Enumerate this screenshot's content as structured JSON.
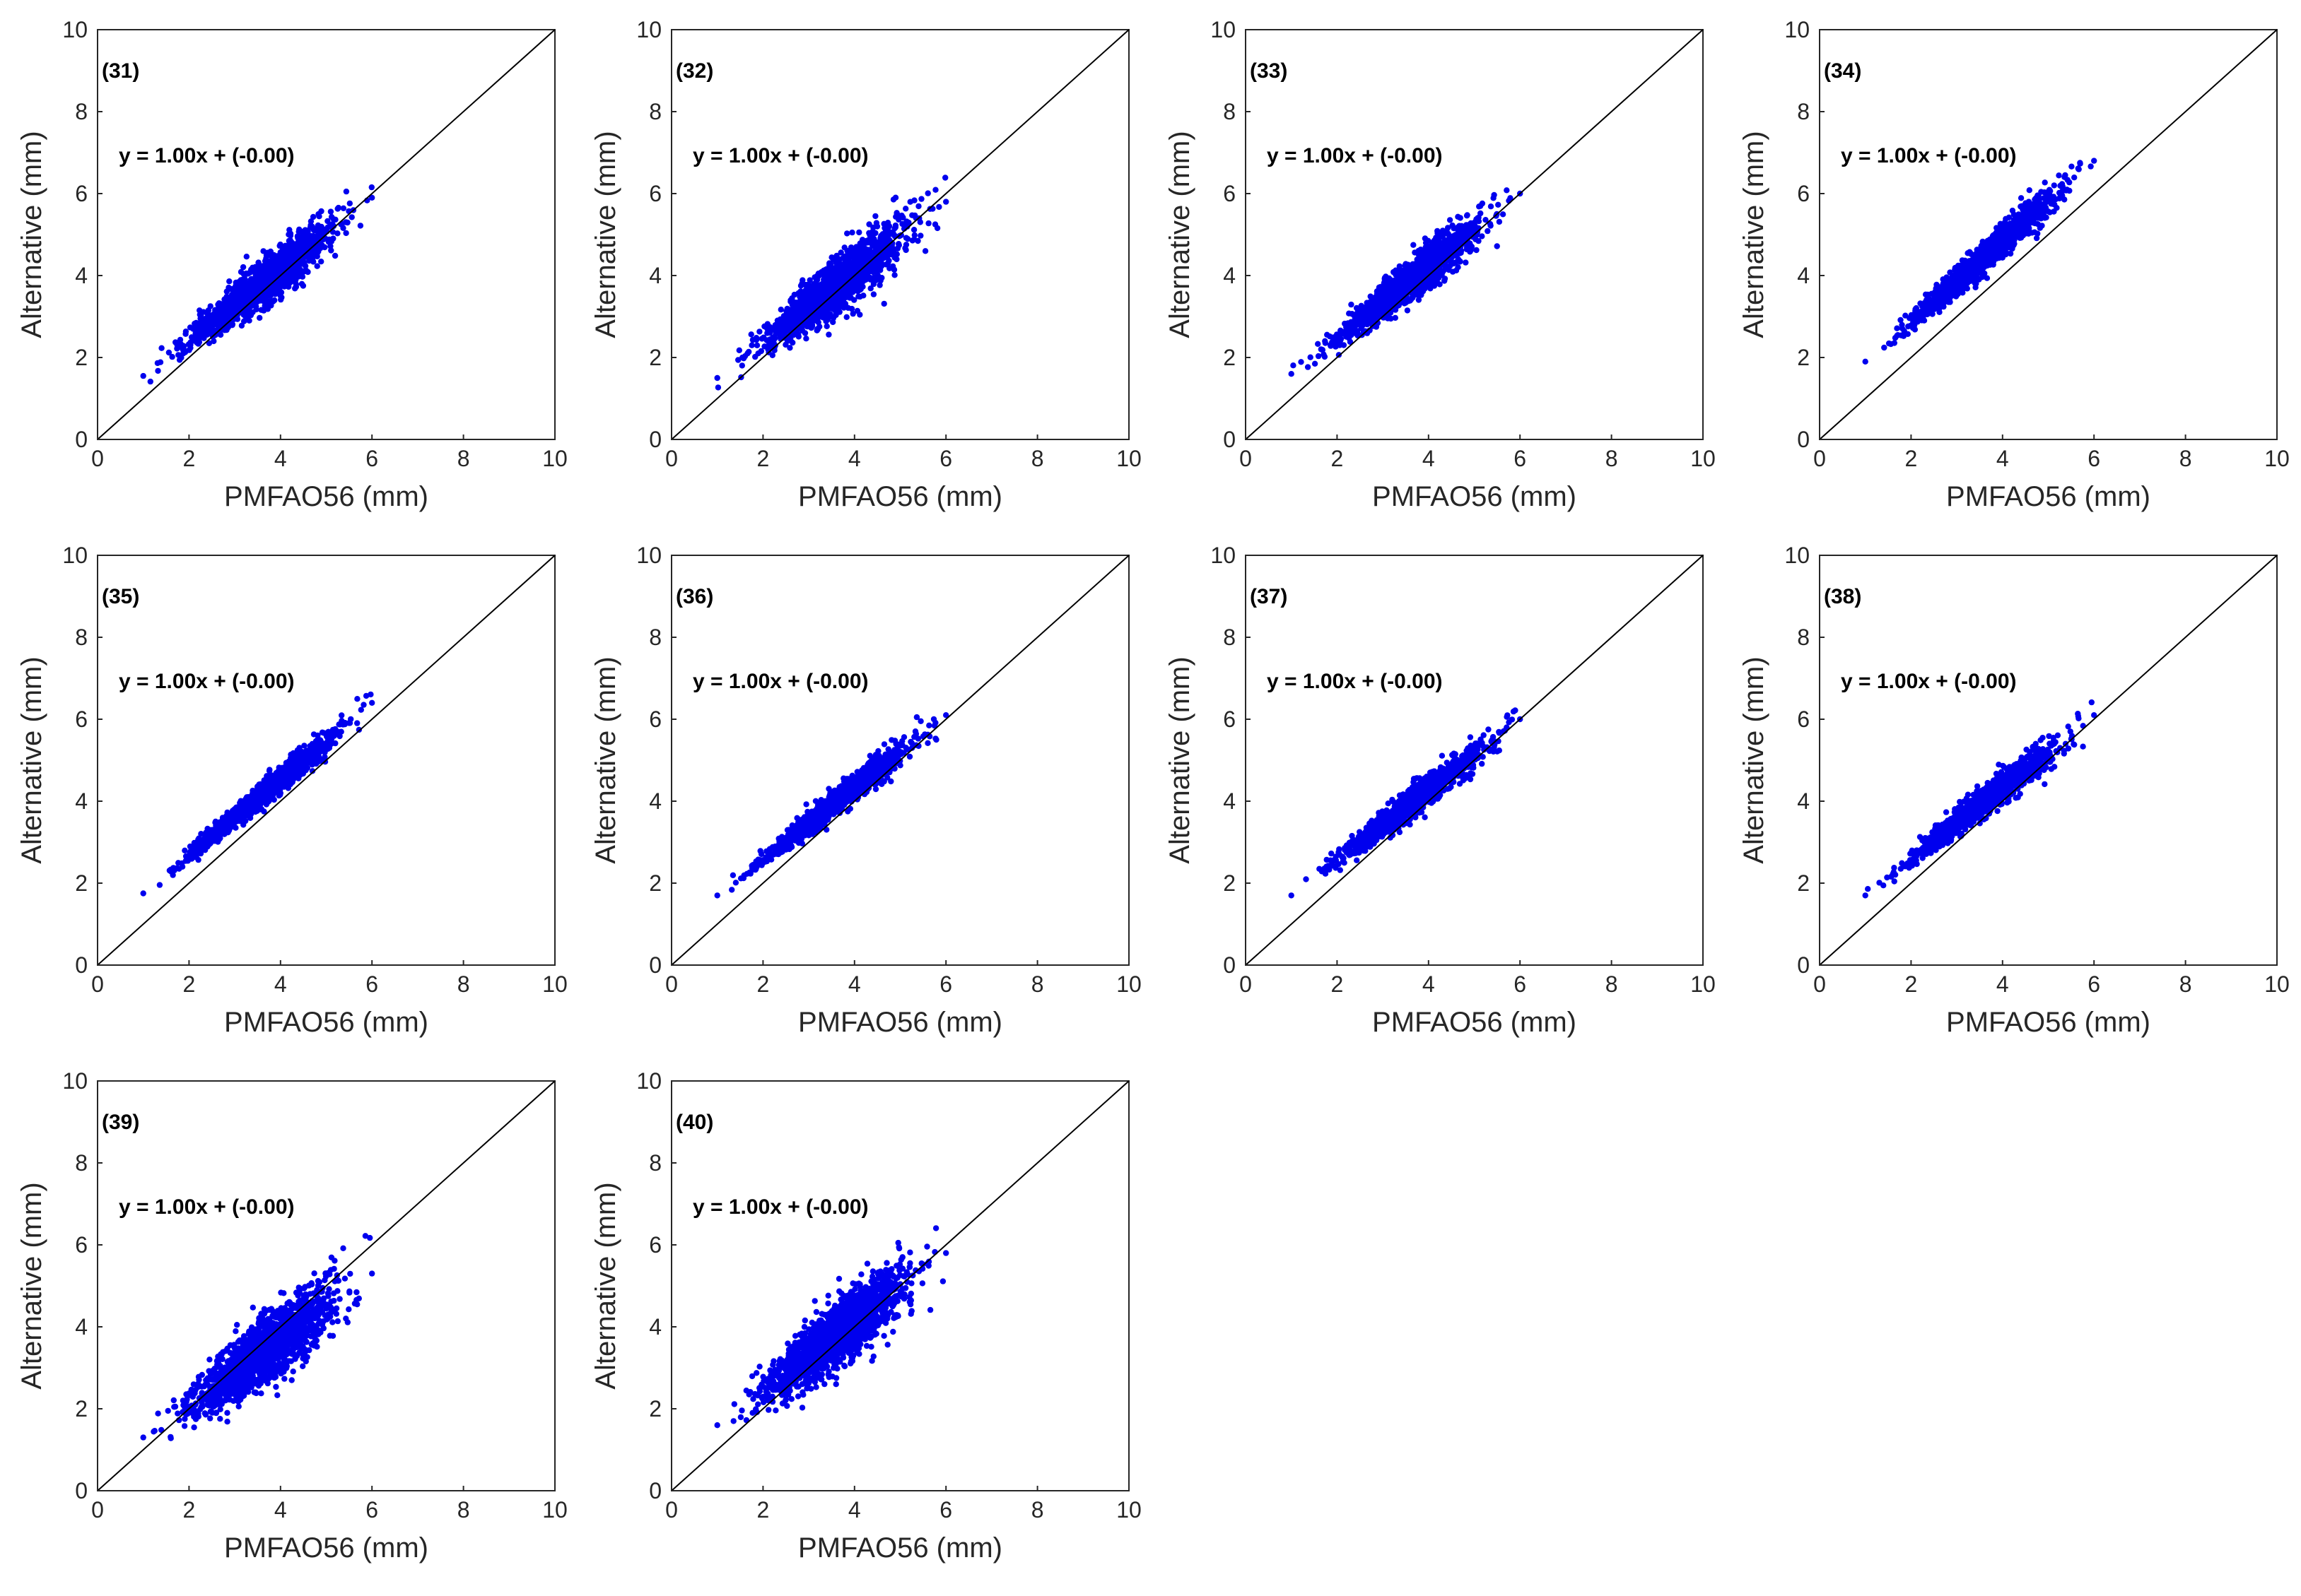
{
  "figure": {
    "description_title": "Scatter plots of Alternative vs PMFAO56, panels 31 to 40",
    "colors": {
      "points": "#0000ee",
      "line": "#000000",
      "axis": "#262626",
      "background": "#ffffff"
    },
    "axis_ticks": [
      "0",
      "2",
      "4",
      "6",
      "8",
      "10"
    ]
  },
  "chart_data": [
    {
      "type": "scatter",
      "panel": "(31)",
      "equation": "y = 1.00x + (-0.00)",
      "xlabel": "PMFAO56 (mm)",
      "ylabel": "Alternative (mm)",
      "xlim": [
        0,
        10
      ],
      "ylim": [
        0,
        10
      ],
      "xticks": [
        0,
        2,
        4,
        6,
        8,
        10
      ],
      "yticks": [
        0,
        2,
        4,
        6,
        8,
        10
      ],
      "reference_line": {
        "slope": 1,
        "intercept": 0
      },
      "point_cloud": {
        "x_min": 1.0,
        "x_max": 6.0,
        "y_at_xmin": 1.55,
        "y_at_xmax": 5.9,
        "slope": 1.0,
        "spread": 0.28,
        "n": 1400
      }
    },
    {
      "type": "scatter",
      "panel": "(32)",
      "equation": "y = 1.00x + (-0.00)",
      "xlabel": "PMFAO56 (mm)",
      "ylabel": "Alternative (mm)",
      "xlim": [
        0,
        10
      ],
      "ylim": [
        0,
        10
      ],
      "xticks": [
        0,
        2,
        4,
        6,
        8,
        10
      ],
      "yticks": [
        0,
        2,
        4,
        6,
        8,
        10
      ],
      "reference_line": {
        "slope": 1,
        "intercept": 0
      },
      "point_cloud": {
        "x_min": 1.0,
        "x_max": 6.0,
        "y_at_xmin": 1.5,
        "y_at_xmax": 5.8,
        "slope": 1.0,
        "spread": 0.32,
        "n": 1500
      }
    },
    {
      "type": "scatter",
      "panel": "(33)",
      "equation": "y = 1.00x + (-0.00)",
      "xlabel": "PMFAO56 (mm)",
      "ylabel": "Alternative (mm)",
      "xlim": [
        0,
        10
      ],
      "ylim": [
        0,
        10
      ],
      "xticks": [
        0,
        2,
        4,
        6,
        8,
        10
      ],
      "yticks": [
        0,
        2,
        4,
        6,
        8,
        10
      ],
      "reference_line": {
        "slope": 1,
        "intercept": 0
      },
      "point_cloud": {
        "x_min": 1.0,
        "x_max": 6.0,
        "y_at_xmin": 1.6,
        "y_at_xmax": 6.0,
        "slope": 1.0,
        "spread": 0.25,
        "n": 1400
      }
    },
    {
      "type": "scatter",
      "panel": "(34)",
      "equation": "y = 1.00x + (-0.00)",
      "xlabel": "PMFAO56 (mm)",
      "ylabel": "Alternative (mm)",
      "xlim": [
        0,
        10
      ],
      "ylim": [
        0,
        10
      ],
      "xticks": [
        0,
        2,
        4,
        6,
        8,
        10
      ],
      "yticks": [
        0,
        2,
        4,
        6,
        8,
        10
      ],
      "reference_line": {
        "slope": 1,
        "intercept": 0
      },
      "point_cloud": {
        "x_min": 1.0,
        "x_max": 6.0,
        "y_at_xmin": 1.9,
        "y_at_xmax": 6.8,
        "slope": 1.0,
        "spread": 0.18,
        "n": 1400
      }
    },
    {
      "type": "scatter",
      "panel": "(35)",
      "equation": "y = 1.00x + (-0.00)",
      "xlabel": "PMFAO56 (mm)",
      "ylabel": "Alternative (mm)",
      "xlim": [
        0,
        10
      ],
      "ylim": [
        0,
        10
      ],
      "xticks": [
        0,
        2,
        4,
        6,
        8,
        10
      ],
      "yticks": [
        0,
        2,
        4,
        6,
        8,
        10
      ],
      "reference_line": {
        "slope": 1,
        "intercept": 0
      },
      "point_cloud": {
        "x_min": 1.0,
        "x_max": 6.0,
        "y_at_xmin": 1.75,
        "y_at_xmax": 6.4,
        "slope": 1.0,
        "spread": 0.15,
        "n": 1300
      }
    },
    {
      "type": "scatter",
      "panel": "(36)",
      "equation": "y = 1.00x + (-0.00)",
      "xlabel": "PMFAO56 (mm)",
      "ylabel": "Alternative (mm)",
      "xlim": [
        0,
        10
      ],
      "ylim": [
        0,
        10
      ],
      "xticks": [
        0,
        2,
        4,
        6,
        8,
        10
      ],
      "yticks": [
        0,
        2,
        4,
        6,
        8,
        10
      ],
      "reference_line": {
        "slope": 1,
        "intercept": 0
      },
      "point_cloud": {
        "x_min": 1.0,
        "x_max": 6.0,
        "y_at_xmin": 1.7,
        "y_at_xmax": 6.1,
        "slope": 1.0,
        "spread": 0.16,
        "n": 1300
      }
    },
    {
      "type": "scatter",
      "panel": "(37)",
      "equation": "y = 1.00x + (-0.00)",
      "xlabel": "PMFAO56 (mm)",
      "ylabel": "Alternative (mm)",
      "xlim": [
        0,
        10
      ],
      "ylim": [
        0,
        10
      ],
      "xticks": [
        0,
        2,
        4,
        6,
        8,
        10
      ],
      "yticks": [
        0,
        2,
        4,
        6,
        8,
        10
      ],
      "reference_line": {
        "slope": 1,
        "intercept": 0
      },
      "point_cloud": {
        "x_min": 1.0,
        "x_max": 6.0,
        "y_at_xmin": 1.7,
        "y_at_xmax": 6.0,
        "slope": 1.0,
        "spread": 0.17,
        "n": 1300
      }
    },
    {
      "type": "scatter",
      "panel": "(38)",
      "equation": "y = 1.00x + (-0.00)",
      "xlabel": "PMFAO56 (mm)",
      "ylabel": "Alternative (mm)",
      "xlim": [
        0,
        10
      ],
      "ylim": [
        0,
        10
      ],
      "xticks": [
        0,
        2,
        4,
        6,
        8,
        10
      ],
      "yticks": [
        0,
        2,
        4,
        6,
        8,
        10
      ],
      "reference_line": {
        "slope": 1,
        "intercept": 0
      },
      "point_cloud": {
        "x_min": 1.0,
        "x_max": 6.0,
        "y_at_xmin": 1.7,
        "y_at_xmax": 6.1,
        "slope": 1.0,
        "spread": 0.18,
        "n": 1300
      }
    },
    {
      "type": "scatter",
      "panel": "(39)",
      "equation": "y = 1.00x + (-0.00)",
      "xlabel": "PMFAO56 (mm)",
      "ylabel": "Alternative (mm)",
      "xlim": [
        0,
        10
      ],
      "ylim": [
        0,
        10
      ],
      "xticks": [
        0,
        2,
        4,
        6,
        8,
        10
      ],
      "yticks": [
        0,
        2,
        4,
        6,
        8,
        10
      ],
      "reference_line": {
        "slope": 1,
        "intercept": 0
      },
      "point_cloud": {
        "x_min": 1.0,
        "x_max": 6.0,
        "y_at_xmin": 1.3,
        "y_at_xmax": 5.3,
        "slope": 1.0,
        "spread": 0.4,
        "n": 1700
      }
    },
    {
      "type": "scatter",
      "panel": "(40)",
      "equation": "y = 1.00x + (-0.00)",
      "xlabel": "PMFAO56 (mm)",
      "ylabel": "Alternative (mm)",
      "xlim": [
        0,
        10
      ],
      "ylim": [
        0,
        10
      ],
      "xticks": [
        0,
        2,
        4,
        6,
        8,
        10
      ],
      "yticks": [
        0,
        2,
        4,
        6,
        8,
        10
      ],
      "reference_line": {
        "slope": 1,
        "intercept": 0
      },
      "point_cloud": {
        "x_min": 1.0,
        "x_max": 6.0,
        "y_at_xmin": 1.6,
        "y_at_xmax": 5.8,
        "slope": 1.0,
        "spread": 0.38,
        "n": 1700
      }
    }
  ]
}
